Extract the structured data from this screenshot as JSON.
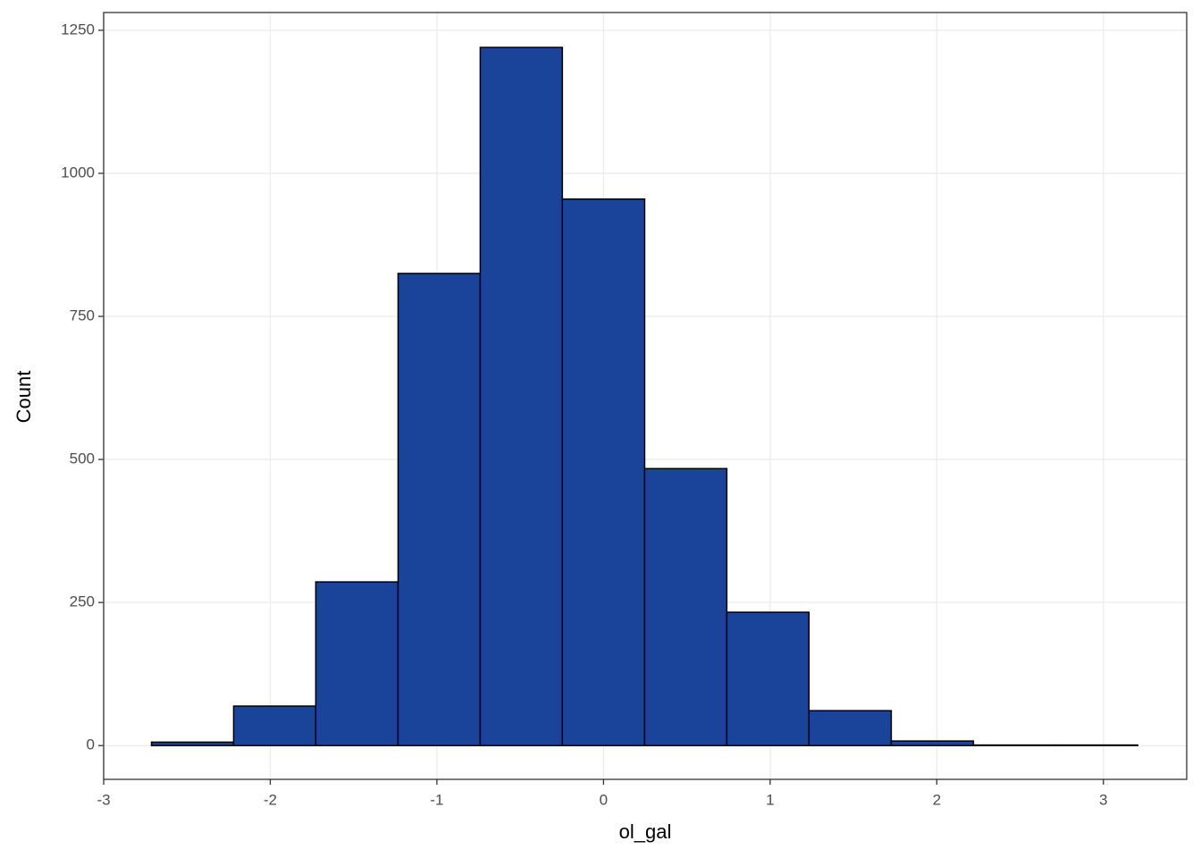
{
  "chart_data": {
    "type": "histogram",
    "x_label": "ol_gal",
    "y_label": "Count",
    "bins": [
      -2.713,
      -2.22,
      -1.727,
      -1.233,
      -0.74,
      -0.247,
      0.247,
      0.74,
      1.233,
      1.727,
      2.22,
      2.713,
      3.206
    ],
    "values": [
      6,
      69,
      286,
      825,
      1220,
      955,
      484,
      233,
      61,
      8,
      1,
      1
    ],
    "color": "#1a4499",
    "edge_color": "#000000",
    "xlim": [
      -3,
      3.5
    ],
    "xticks": [
      -3,
      -2,
      -1,
      0,
      1,
      2,
      3
    ],
    "ylim": [
      -59,
      1281
    ],
    "yticks": [
      0,
      250,
      500,
      750,
      1000,
      1250
    ],
    "grid": true
  }
}
